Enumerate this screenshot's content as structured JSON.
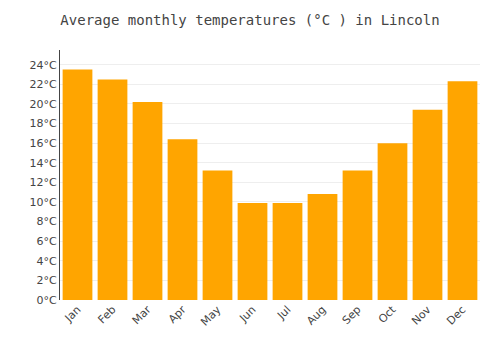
{
  "chart_data": {
    "type": "bar",
    "title": "Average monthly temperatures (°C ) in Lincoln",
    "categories": [
      "Jan",
      "Feb",
      "Mar",
      "Apr",
      "May",
      "Jun",
      "Jul",
      "Aug",
      "Sep",
      "Oct",
      "Nov",
      "Dec"
    ],
    "values": [
      23.5,
      22.5,
      20.2,
      16.4,
      13.2,
      9.9,
      9.9,
      10.8,
      13.2,
      16.0,
      19.4,
      22.3
    ],
    "color": "#FFA500",
    "ylim": [
      0,
      25.5
    ],
    "yticks": [
      {
        "value": 0,
        "label": "0°C"
      },
      {
        "value": 2,
        "label": "2°C"
      },
      {
        "value": 4,
        "label": "4°C"
      },
      {
        "value": 6,
        "label": "6°C"
      },
      {
        "value": 8,
        "label": "8°C"
      },
      {
        "value": 10,
        "label": "10°C"
      },
      {
        "value": 12,
        "label": "12°C"
      },
      {
        "value": 14,
        "label": "14°C"
      },
      {
        "value": 16,
        "label": "16°C"
      },
      {
        "value": 18,
        "label": "18°C"
      },
      {
        "value": 20,
        "label": "20°C"
      },
      {
        "value": 22,
        "label": "22°C"
      },
      {
        "value": 24,
        "label": "24°C"
      }
    ],
    "grid": true
  }
}
